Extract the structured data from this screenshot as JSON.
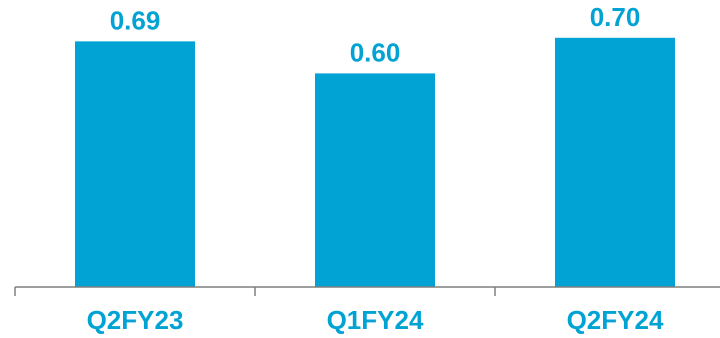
{
  "chart_data": {
    "type": "bar",
    "categories": [
      "Q2FY23",
      "Q1FY24",
      "Q2FY24"
    ],
    "values": [
      0.69,
      0.6,
      0.7
    ],
    "data_labels": [
      "0.69",
      "0.60",
      "0.70"
    ],
    "title": "",
    "xlabel": "",
    "ylabel": "",
    "ylim": [
      0,
      0.75
    ],
    "grid": false,
    "legend": "none"
  },
  "colors": {
    "bar": "#00A3D4",
    "label": "#00A3D4",
    "axis": "#7F7F7F"
  }
}
